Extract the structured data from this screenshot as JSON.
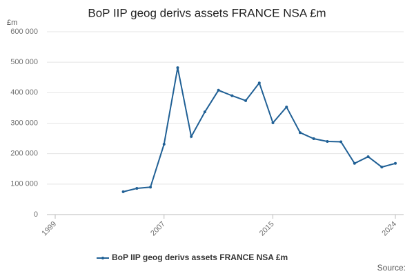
{
  "chart_data": {
    "type": "line",
    "title": "BoP IIP geog derivs assets FRANCE NSA £m",
    "y_unit": "£m",
    "source": "Source:",
    "x": [
      2004,
      2005,
      2006,
      2007,
      2008,
      2009,
      2010,
      2011,
      2012,
      2013,
      2014,
      2015,
      2016,
      2017,
      2018,
      2019,
      2020,
      2021,
      2022,
      2023,
      2024
    ],
    "series": [
      {
        "name": "BoP IIP geog derivs assets FRANCE NSA £m",
        "color": "#206095",
        "values": [
          75000,
          86000,
          90000,
          231000,
          482000,
          256000,
          337000,
          408000,
          390000,
          374000,
          432000,
          301000,
          353000,
          269000,
          249000,
          240000,
          239000,
          168000,
          190000,
          156000,
          168000
        ]
      }
    ],
    "xlim": [
      1999,
      2024
    ],
    "xticks": [
      1999,
      2007,
      2015,
      2024
    ],
    "ylim": [
      0,
      600000
    ],
    "yticks": [
      0,
      {
        "value": 100000,
        "label": "100 000"
      },
      {
        "value": 200000,
        "label": "200 000"
      },
      {
        "value": 300000,
        "label": "300 000"
      },
      {
        "value": 400000,
        "label": "400 000"
      },
      {
        "value": 500000,
        "label": "500 000"
      },
      {
        "value": 600000,
        "label": "600 000"
      }
    ],
    "grid": true
  }
}
